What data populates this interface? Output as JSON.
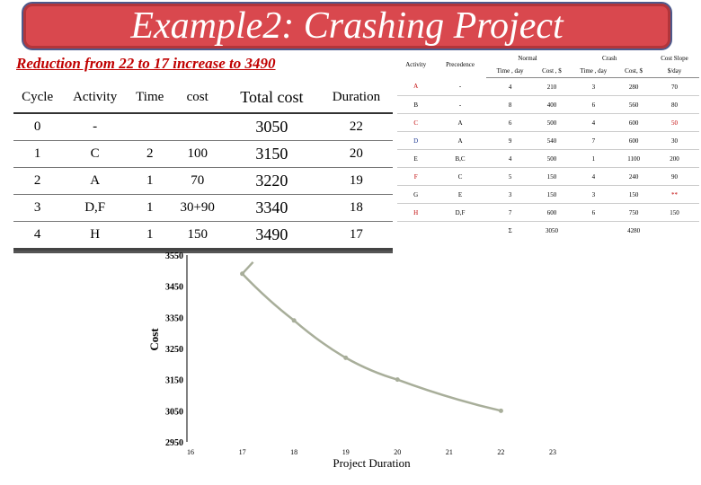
{
  "title": "Example2: Crashing Project",
  "subtitle": "Reduction from 22 to 17 increase to 3490",
  "cycle_table": {
    "headers": [
      "Cycle",
      "Activity",
      "Time",
      "cost",
      "Total cost",
      "Duration"
    ],
    "rows": [
      [
        "0",
        "-",
        "",
        "",
        "3050",
        "22"
      ],
      [
        "1",
        "C",
        "2",
        "100",
        "3150",
        "20"
      ],
      [
        "2",
        "A",
        "1",
        "70",
        "3220",
        "19"
      ],
      [
        "3",
        "D,F",
        "1",
        "30+90",
        "3340",
        "18"
      ],
      [
        "4",
        "H",
        "1",
        "150",
        "3490",
        "17"
      ]
    ]
  },
  "activity_table": {
    "headers": {
      "activity": "Activity",
      "precedence": "Precedence",
      "normal": "Normal",
      "crash": "Crash",
      "cost_slope": "Cost Slope",
      "normal_time": "Time , day",
      "normal_cost": "Cost , $",
      "crash_time": "Time , day",
      "crash_cost": "Cost, $",
      "slope_unit": "$/day"
    },
    "rows": [
      {
        "activity": "A",
        "precedence": "-",
        "normal_time": "4",
        "normal_cost": "210",
        "crash_time": "3",
        "crash_cost": "280",
        "slope": "70"
      },
      {
        "activity": "B",
        "precedence": "-",
        "normal_time": "8",
        "normal_cost": "400",
        "crash_time": "6",
        "crash_cost": "560",
        "slope": "80"
      },
      {
        "activity": "C",
        "precedence": "A",
        "normal_time": "6",
        "normal_cost": "500",
        "crash_time": "4",
        "crash_cost": "600",
        "slope": "50"
      },
      {
        "activity": "D",
        "precedence": "A",
        "normal_time": "9",
        "normal_cost": "540",
        "crash_time": "7",
        "crash_cost": "600",
        "slope": "30"
      },
      {
        "activity": "E",
        "precedence": "B,C",
        "normal_time": "4",
        "normal_cost": "500",
        "crash_time": "1",
        "crash_cost": "1100",
        "slope": "200"
      },
      {
        "activity": "F",
        "precedence": "C",
        "normal_time": "5",
        "normal_cost": "150",
        "crash_time": "4",
        "crash_cost": "240",
        "slope": "90"
      },
      {
        "activity": "G",
        "precedence": "E",
        "normal_time": "3",
        "normal_cost": "150",
        "crash_time": "3",
        "crash_cost": "150",
        "slope": "**"
      },
      {
        "activity": "H",
        "precedence": "D,F",
        "normal_time": "7",
        "normal_cost": "600",
        "crash_time": "6",
        "crash_cost": "750",
        "slope": "150"
      }
    ],
    "total": {
      "label": "Σ",
      "normal_cost": "3050",
      "crash_cost": "4280"
    }
  },
  "colors": {
    "banner": "#d9484e",
    "banner_border": "#4e5a8c",
    "subtitle": "#c00000",
    "curve": "#a8ae9a",
    "highlight_red": "#c00000",
    "highlight_blue": "#1f3a93"
  },
  "chart_data": {
    "type": "line",
    "xlabel": "Project Duration",
    "ylabel": "Cost",
    "xlim": [
      16,
      23
    ],
    "ylim": [
      2950,
      3550
    ],
    "x_ticks": [
      16,
      17,
      18,
      19,
      20,
      21,
      22,
      23
    ],
    "y_ticks": [
      2950,
      3050,
      3150,
      3250,
      3350,
      3450,
      3550
    ],
    "series": [
      {
        "x": [
          22,
          20,
          19,
          18,
          17
        ],
        "y": [
          3050,
          3150,
          3220,
          3340,
          3490
        ]
      }
    ],
    "grid": false
  }
}
